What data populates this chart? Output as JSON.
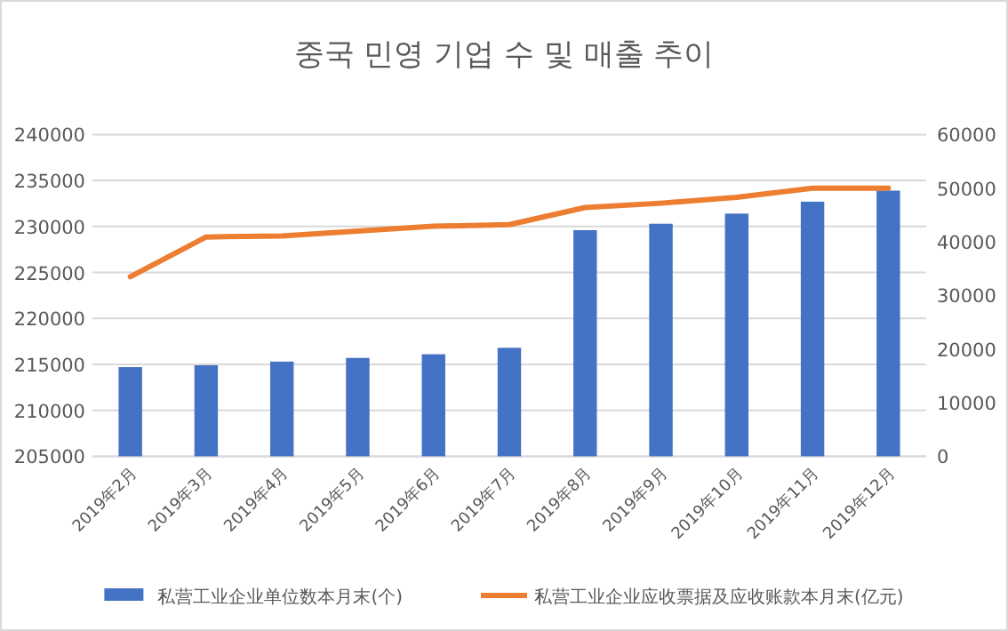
{
  "chart_data": {
    "type": "bar",
    "title": "중국 민영 기업 수 및 매출 추이",
    "categories": [
      "2019年2月",
      "2019年3月",
      "2019年4月",
      "2019年5月",
      "2019年6月",
      "2019年7月",
      "2019年8月",
      "2019年9月",
      "2019年10月",
      "2019年11月",
      "2019年12月"
    ],
    "series": [
      {
        "name": "私营工业企业单位数本月末(个)",
        "color": "#4472c4",
        "values": [
          214700,
          214900,
          215300,
          215700,
          216100,
          216800,
          229600,
          230300,
          231400,
          232700,
          233900
        ]
      },
      {
        "name": "私营工业企业应收票据及应收账款本月末(亿元)",
        "type": "line",
        "axis": "y2",
        "color": "#ed7d31",
        "values": [
          33500,
          40900,
          41100,
          42000,
          42900,
          43200,
          46400,
          47200,
          48300,
          50000,
          50000
        ]
      }
    ],
    "ylim": [
      205000,
      240000
    ],
    "yticks": [
      205000,
      210000,
      215000,
      220000,
      225000,
      230000,
      235000,
      240000
    ],
    "y2lim": [
      0,
      60000
    ],
    "y2ticks": [
      0,
      10000,
      20000,
      30000,
      40000,
      50000,
      60000
    ],
    "grid": "y",
    "legend": "bottom"
  }
}
